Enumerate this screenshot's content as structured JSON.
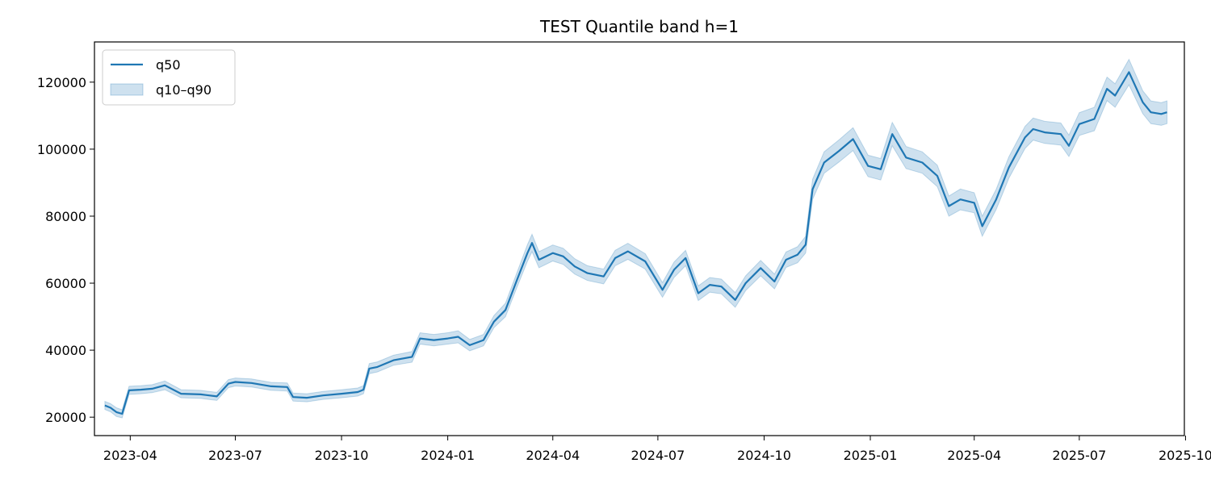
{
  "chart_data": {
    "type": "line",
    "title": "TEST Quantile band h=1",
    "xlabel": "",
    "ylabel": "",
    "x_range": [
      "2023-03-01",
      "2025-09-30"
    ],
    "ylim": [
      14500,
      132000
    ],
    "grid": false,
    "legend_position": "top-left",
    "x_ticks": [
      "2023-04",
      "2023-07",
      "2023-10",
      "2024-01",
      "2024-04",
      "2024-07",
      "2024-10",
      "2025-01",
      "2025-04",
      "2025-07",
      "2025-10"
    ],
    "y_ticks": [
      20000,
      40000,
      60000,
      80000,
      100000,
      120000
    ],
    "colors": {
      "line": "#1f77b4",
      "band": "#1f77b4",
      "band_opacity": 0.2
    },
    "series": [
      {
        "name": "q50",
        "kind": "line"
      },
      {
        "name": "q10–q90",
        "kind": "band"
      }
    ],
    "x": [
      "2023-03-10",
      "2023-03-15",
      "2023-03-20",
      "2023-03-25",
      "2023-03-31",
      "2023-04-10",
      "2023-04-20",
      "2023-05-01",
      "2023-05-15",
      "2023-06-01",
      "2023-06-15",
      "2023-06-25",
      "2023-07-01",
      "2023-07-15",
      "2023-08-01",
      "2023-08-15",
      "2023-08-20",
      "2023-09-01",
      "2023-09-15",
      "2023-10-01",
      "2023-10-15",
      "2023-10-20",
      "2023-10-25",
      "2023-11-01",
      "2023-11-15",
      "2023-12-01",
      "2023-12-08",
      "2023-12-20",
      "2024-01-01",
      "2024-01-10",
      "2024-01-20",
      "2024-02-01",
      "2024-02-10",
      "2024-02-20",
      "2024-03-01",
      "2024-03-10",
      "2024-03-14",
      "2024-03-20",
      "2024-04-01",
      "2024-04-10",
      "2024-04-20",
      "2024-05-01",
      "2024-05-15",
      "2024-05-25",
      "2024-06-05",
      "2024-06-20",
      "2024-07-05",
      "2024-07-15",
      "2024-07-25",
      "2024-08-05",
      "2024-08-15",
      "2024-08-25",
      "2024-09-06",
      "2024-09-15",
      "2024-09-28",
      "2024-10-10",
      "2024-10-20",
      "2024-10-30",
      "2024-11-06",
      "2024-11-12",
      "2024-11-22",
      "2024-12-05",
      "2024-12-17",
      "2024-12-30",
      "2025-01-10",
      "2025-01-20",
      "2025-02-01",
      "2025-02-15",
      "2025-02-28",
      "2025-03-10",
      "2025-03-20",
      "2025-04-01",
      "2025-04-08",
      "2025-04-20",
      "2025-05-01",
      "2025-05-15",
      "2025-05-22",
      "2025-06-01",
      "2025-06-15",
      "2025-06-22",
      "2025-07-01",
      "2025-07-14",
      "2025-07-25",
      "2025-08-01",
      "2025-08-13",
      "2025-08-25",
      "2025-09-01",
      "2025-09-10",
      "2025-09-15"
    ],
    "q50": [
      23500,
      22800,
      21500,
      21000,
      28000,
      28200,
      28500,
      29500,
      27000,
      26800,
      26200,
      30000,
      30500,
      30200,
      29200,
      29000,
      26000,
      25800,
      26500,
      27000,
      27500,
      28200,
      34500,
      35000,
      37000,
      38000,
      43500,
      43000,
      43500,
      44000,
      41500,
      43000,
      48500,
      52000,
      61000,
      69000,
      72000,
      67000,
      69000,
      68000,
      65000,
      63000,
      62000,
      67500,
      69500,
      66500,
      58000,
      64000,
      67500,
      57000,
      59500,
      59000,
      55000,
      60000,
      64500,
      60500,
      67000,
      68500,
      71500,
      88000,
      96000,
      99500,
      103000,
      95000,
      94000,
      104500,
      97500,
      96000,
      92000,
      83000,
      85000,
      84000,
      77000,
      85000,
      94500,
      103500,
      106000,
      105000,
      104500,
      101000,
      107500,
      109000,
      118000,
      116000,
      123000,
      114000,
      111000,
      110500,
      111000
    ],
    "q10": [
      22300,
      21600,
      20200,
      19800,
      26800,
      27000,
      27300,
      28200,
      25800,
      25600,
      25000,
      28800,
      29300,
      29000,
      28000,
      27800,
      24800,
      24600,
      25300,
      25800,
      26300,
      27000,
      33000,
      33500,
      35500,
      36400,
      41800,
      41300,
      41800,
      42200,
      39800,
      41300,
      46700,
      50000,
      58800,
      66500,
      69400,
      64600,
      66600,
      65600,
      62700,
      60800,
      59800,
      65200,
      67100,
      64200,
      55800,
      61700,
      65200,
      54800,
      57300,
      56800,
      52800,
      57800,
      62200,
      58300,
      64700,
      66100,
      69000,
      85000,
      92800,
      96200,
      99600,
      91800,
      90800,
      101000,
      94200,
      92800,
      88800,
      80000,
      81900,
      81000,
      74000,
      82000,
      91300,
      100200,
      102700,
      101700,
      101200,
      97800,
      104100,
      105500,
      114500,
      112500,
      119200,
      110600,
      107600,
      107100,
      107600
    ],
    "q90": [
      24700,
      24000,
      22800,
      22200,
      29200,
      29400,
      29700,
      30800,
      28200,
      28000,
      27400,
      31200,
      31700,
      31400,
      30400,
      30200,
      27200,
      27000,
      27700,
      28200,
      28700,
      29400,
      36000,
      36500,
      38500,
      39600,
      45200,
      44700,
      45200,
      45800,
      43200,
      44700,
      50300,
      54000,
      63200,
      71500,
      74600,
      69400,
      71400,
      70400,
      67300,
      65200,
      64200,
      69800,
      71900,
      68800,
      60200,
      66300,
      69800,
      59200,
      61700,
      61200,
      57200,
      62200,
      66800,
      62700,
      69300,
      70900,
      74000,
      91000,
      99200,
      102800,
      106400,
      98200,
      97200,
      108000,
      100800,
      99200,
      95200,
      86000,
      88100,
      87000,
      80000,
      88000,
      97700,
      106800,
      109300,
      108300,
      107800,
      104200,
      110900,
      112500,
      121500,
      119500,
      126800,
      117400,
      114400,
      113900,
      114400
    ]
  }
}
